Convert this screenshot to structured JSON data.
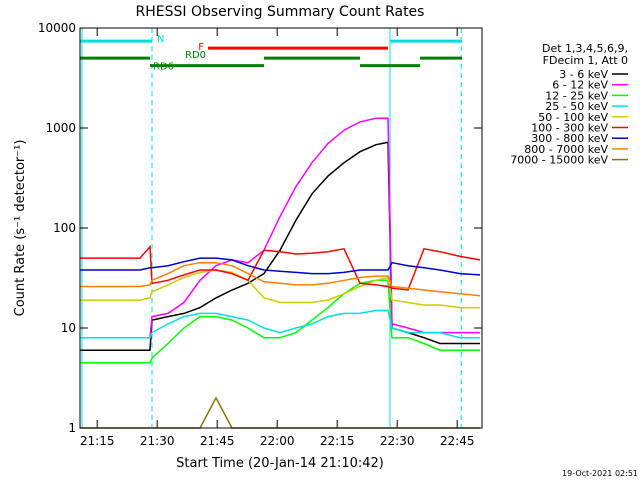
{
  "chart_data": {
    "type": "line",
    "title": "RHESSI Observing Summary Count Rates",
    "xlabel": "Start Time (20-Jan-14 21:10:42)",
    "ylabel": "Count Rate (s⁻¹ detector⁻¹)",
    "legend_title": [
      "Det 1,3,4,5,6,9,",
      "FDecim 1, Att 0"
    ],
    "footer": "19-Oct-2021 02:51",
    "log_y": true,
    "legend": "right",
    "xlim": [
      0,
      100.5
    ],
    "ylim": [
      1,
      10000
    ],
    "xticks": [
      {
        "value": 4.3,
        "label": "21:15"
      },
      {
        "value": 19.3,
        "label": "21:30"
      },
      {
        "value": 34.3,
        "label": "21:45"
      },
      {
        "value": 49.3,
        "label": "22:00"
      },
      {
        "value": 64.3,
        "label": "22:15"
      },
      {
        "value": 79.3,
        "label": "22:30"
      },
      {
        "value": 94.3,
        "label": "22:45"
      }
    ],
    "yticks": [
      1,
      10,
      100,
      1000,
      10000
    ],
    "x": [
      0,
      5,
      10,
      15,
      17.5,
      18,
      22,
      26,
      30,
      34,
      38,
      42,
      46,
      50,
      54,
      58,
      62,
      66,
      70,
      74,
      77,
      78,
      82,
      86,
      90,
      95,
      100
    ],
    "series": [
      {
        "name": "3 - 6 keV",
        "color": "#000000",
        "values": [
          6,
          6,
          6,
          6,
          6,
          12,
          13,
          14,
          16,
          20,
          24,
          28,
          35,
          60,
          120,
          220,
          330,
          450,
          580,
          680,
          720,
          10,
          9,
          8,
          7,
          7,
          7
        ]
      },
      {
        "name": "6 - 12 keV",
        "color": "#ff00ff",
        "values": [
          8,
          8,
          8,
          8,
          8,
          13,
          14,
          18,
          30,
          42,
          48,
          45,
          60,
          130,
          260,
          450,
          700,
          950,
          1150,
          1250,
          1250,
          11,
          10,
          9,
          9,
          9,
          9
        ]
      },
      {
        "name": "12 - 25 keV",
        "color": "#00ff00",
        "values": [
          4.5,
          4.5,
          4.5,
          4.5,
          4.5,
          5,
          7,
          10,
          13,
          13,
          12,
          10,
          8,
          8,
          9,
          12,
          16,
          22,
          28,
          30,
          30,
          8,
          8,
          7,
          6,
          6,
          6
        ]
      },
      {
        "name": "25 - 50 keV",
        "color": "#00e0e0",
        "values": [
          8,
          8,
          8,
          8,
          8,
          9,
          11,
          13,
          14,
          14,
          13,
          12,
          10,
          9,
          10,
          11,
          13,
          14,
          14,
          15,
          15,
          10,
          9,
          9,
          9,
          8,
          8
        ]
      },
      {
        "name": "50 - 100 keV",
        "color": "#cccc00",
        "values": [
          19,
          19,
          19,
          19,
          20,
          23,
          27,
          32,
          36,
          38,
          36,
          30,
          20,
          18,
          18,
          18,
          19,
          22,
          26,
          30,
          32,
          19,
          18,
          17,
          17,
          16,
          16
        ]
      },
      {
        "name": "100 - 300 keV",
        "color": "#ff0000",
        "values": [
          50,
          50,
          50,
          50,
          65,
          28,
          30,
          34,
          38,
          38,
          35,
          30,
          60,
          58,
          55,
          56,
          58,
          62,
          28,
          27,
          26,
          25,
          24,
          62,
          58,
          52,
          48
        ]
      },
      {
        "name": "300 - 800 keV",
        "color": "#0000cc",
        "values": [
          38,
          38,
          38,
          38,
          40,
          40,
          42,
          46,
          50,
          50,
          48,
          42,
          38,
          37,
          36,
          35,
          35,
          36,
          38,
          38,
          38,
          45,
          42,
          40,
          38,
          35,
          34
        ]
      },
      {
        "name": "800 - 7000 keV",
        "color": "#ff8000",
        "values": [
          26,
          26,
          26,
          26,
          27,
          30,
          35,
          42,
          45,
          45,
          42,
          35,
          29,
          28,
          27,
          27,
          28,
          30,
          32,
          33,
          33,
          26,
          25,
          24,
          23,
          22,
          21
        ]
      },
      {
        "name": "7000 - 15000 keV",
        "color": "#8b7500",
        "values": [
          1,
          1,
          1,
          1,
          1,
          1,
          1,
          1,
          1,
          2,
          1,
          1,
          1,
          1,
          1,
          1,
          1,
          1,
          1,
          1,
          1,
          1,
          1,
          1,
          1,
          1,
          1
        ]
      }
    ],
    "flags": [
      {
        "label": "N",
        "color": "#00e0e0",
        "y": 7400,
        "segments": [
          [
            0,
            18
          ],
          [
            77.5,
            95.5
          ]
        ]
      },
      {
        "label": "F",
        "color": "#ff0000",
        "y": 6300,
        "segments": [
          [
            32,
            77
          ]
        ]
      },
      {
        "label": "RD0",
        "color": "#008000",
        "y": 5000,
        "segments": [
          [
            0,
            17.5
          ],
          [
            46,
            70
          ],
          [
            85,
            95.5
          ]
        ]
      },
      {
        "label": "RD6",
        "color": "#008000",
        "y": 4200,
        "segments": [
          [
            17.5,
            46
          ],
          [
            70,
            85
          ]
        ]
      }
    ],
    "solid_markers": [
      0.5,
      77.5
    ],
    "dashed_markers": [
      18,
      95.3
    ]
  }
}
